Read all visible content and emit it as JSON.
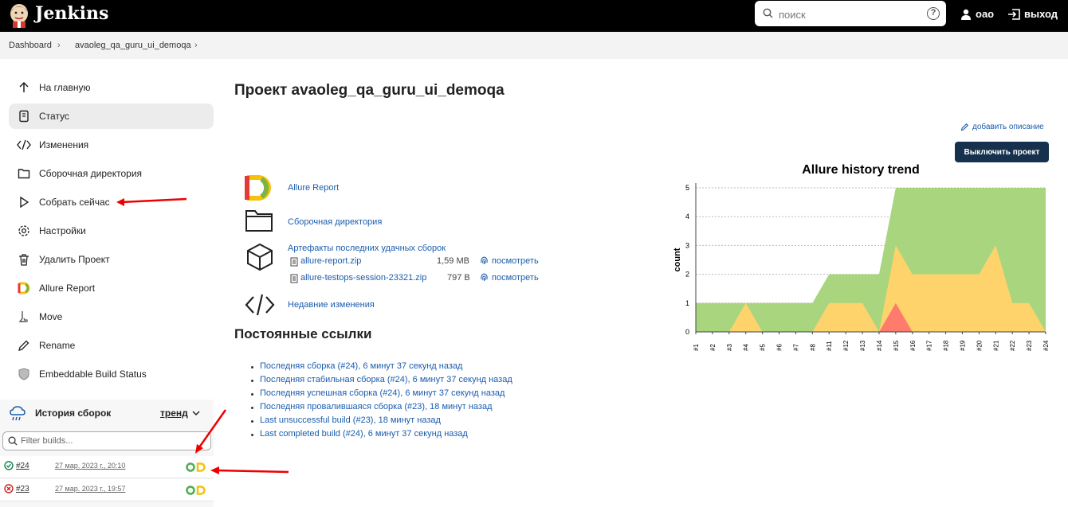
{
  "header": {
    "brand": "Jenkins",
    "search_placeholder": "поиск",
    "help": "?",
    "user": "oao",
    "logout": "выход"
  },
  "breadcrumbs": [
    "Dashboard",
    "avaoleg_qa_guru_ui_demoqa"
  ],
  "sidebar": {
    "items": [
      {
        "label": "На главную",
        "icon": "arrow-up-icon"
      },
      {
        "label": "Статус",
        "icon": "document-icon"
      },
      {
        "label": "Изменения",
        "icon": "code-icon"
      },
      {
        "label": "Сборочная директория",
        "icon": "folder-icon"
      },
      {
        "label": "Собрать сейчас",
        "icon": "play-icon"
      },
      {
        "label": "Настройки",
        "icon": "gear-icon"
      },
      {
        "label": "Удалить Проект",
        "icon": "trash-icon"
      },
      {
        "label": "Allure Report",
        "icon": "allure-icon"
      },
      {
        "label": "Move",
        "icon": "move-icon"
      },
      {
        "label": "Rename",
        "icon": "pencil-icon"
      },
      {
        "label": "Embeddable Build Status",
        "icon": "badge-icon"
      }
    ]
  },
  "history": {
    "title": "История сборок",
    "trend": "тренд",
    "filter_placeholder": "Filter builds...",
    "builds": [
      {
        "number": "#24",
        "date": "27 мар. 2023 г., 20:10",
        "status": "success"
      },
      {
        "number": "#23",
        "date": "27 мар. 2023 г., 19:57",
        "status": "failed"
      }
    ]
  },
  "main": {
    "title": "Проект avaoleg_qa_guru_ui_demoqa",
    "add_description": "добавить описание",
    "disable_button": "Выключить проект",
    "actions": {
      "allure": "Allure Report",
      "workspace": "Сборочная директория",
      "artifacts": "Артефакты последних удачных сборок",
      "changes": "Недавние изменения"
    },
    "artifacts": [
      {
        "name": "allure-report.zip",
        "size": "1,59 MB",
        "view": "посмотреть"
      },
      {
        "name": "allure-testops-session-23321.zip",
        "size": "797 B",
        "view": "посмотреть"
      }
    ],
    "permalinks_title": "Постоянные ссылки",
    "permalinks": [
      "Последняя сборка (#24), 6 минут 37 секунд назад",
      "Последняя стабильная сборка (#24), 6 минут 37 секунд назад",
      "Последняя успешная сборка (#24), 6 минут 37 секунд назад",
      "Последняя провалившаяся сборка (#23), 18 минут назад",
      "Last unsuccessful build (#23), 18 минут назад",
      "Last completed build (#24), 6 минут 37 секунд назад"
    ]
  },
  "colors": {
    "passed": "#a9d57f",
    "broken": "#ffd36b",
    "failed": "#ff7b6b",
    "accent": "#16314d"
  },
  "chart_data": {
    "type": "area",
    "title": "Allure history trend",
    "ylabel": "count",
    "xlabel": "",
    "ylim": [
      0,
      5
    ],
    "categories": [
      "#1",
      "#2",
      "#3",
      "#4",
      "#5",
      "#6",
      "#7",
      "#8",
      "#11",
      "#12",
      "#13",
      "#14",
      "#15",
      "#16",
      "#17",
      "#18",
      "#19",
      "#20",
      "#21",
      "#22",
      "#23",
      "#24"
    ],
    "yticks": [
      0,
      1,
      2,
      3,
      4,
      5
    ],
    "series": [
      {
        "name": "",
        "color": "#a9d57f",
        "values": [
          1,
          1,
          1,
          1,
          1,
          1,
          1,
          1,
          2,
          2,
          2,
          2,
          5,
          5,
          5,
          5,
          5,
          5,
          5,
          5,
          5,
          5
        ]
      },
      {
        "name": "",
        "color": "#ffd36b",
        "values": [
          0,
          0,
          0,
          1,
          0,
          0,
          0,
          0,
          1,
          1,
          1,
          0,
          3,
          2,
          2,
          2,
          2,
          2,
          3,
          1,
          1,
          0
        ]
      },
      {
        "name": "",
        "color": "#ff7b6b",
        "values": [
          0,
          0,
          0,
          0,
          0,
          0,
          0,
          0,
          0,
          0,
          0,
          0,
          1,
          0,
          0,
          0,
          0,
          0,
          0,
          0,
          0,
          0
        ]
      }
    ]
  }
}
